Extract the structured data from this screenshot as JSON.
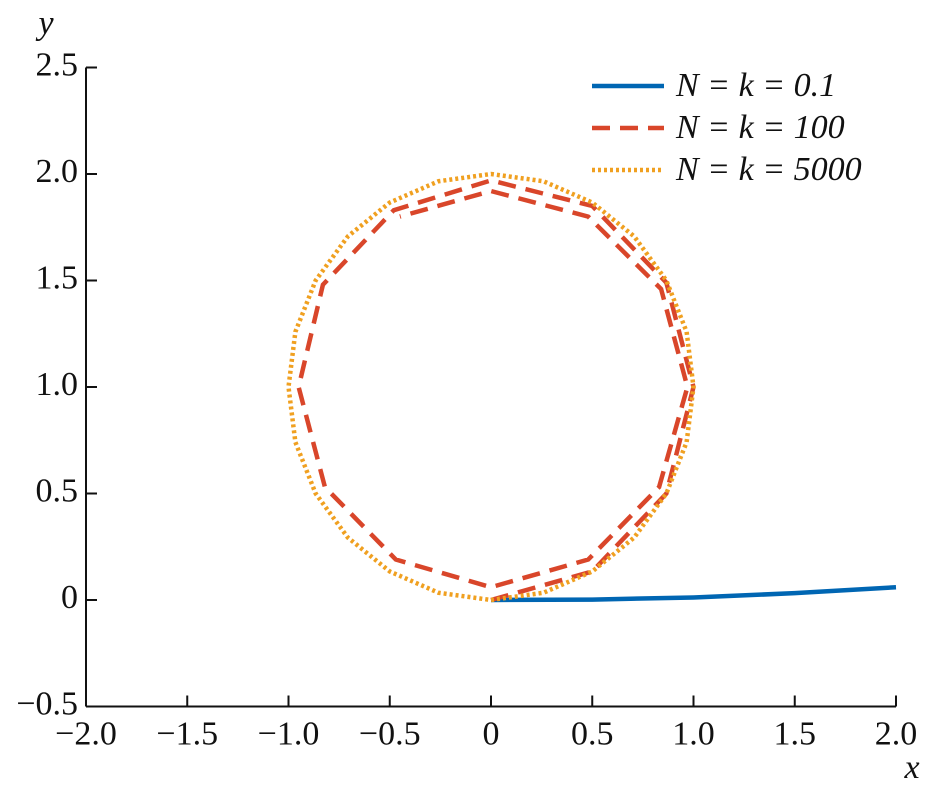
{
  "chart_data": {
    "type": "line",
    "x_label": "x",
    "y_label": "y",
    "xlim": [
      -2,
      2
    ],
    "ylim": [
      -0.5,
      2.5
    ],
    "xticks": [
      {
        "value": -2,
        "label": "−2.0"
      },
      {
        "value": -1.5,
        "label": "−1.5"
      },
      {
        "value": -1,
        "label": "−1.0"
      },
      {
        "value": -0.5,
        "label": "−0.5"
      },
      0,
      0.5,
      {
        "value": 1,
        "label": "1.0"
      },
      1.5,
      {
        "value": 2,
        "label": "2.0"
      }
    ],
    "yticks": [
      {
        "value": -0.5,
        "label": "−0.5"
      },
      0,
      0.5,
      {
        "value": 1,
        "label": "1.0"
      },
      1.5,
      {
        "value": 2,
        "label": "2.0"
      },
      2.5
    ],
    "legend": "upper right",
    "series": [
      {
        "name": "N = k = 0.1",
        "color": "#0066b3",
        "style": "solid",
        "x": [
          0,
          0.5,
          1,
          1.5,
          2
        ],
        "values": [
          0,
          0.002,
          0.012,
          0.032,
          0.06
        ]
      },
      {
        "name": "N = k = 100",
        "color": "#d9462a",
        "style": "dashed",
        "x": [
          0,
          0.5,
          0.866,
          1.0,
          0.866,
          0.5,
          0,
          -0.48,
          -0.83,
          -0.95,
          -0.82,
          -0.47,
          0,
          0.48,
          0.83,
          0.97,
          0.84,
          0.48,
          0,
          -0.45
        ],
        "values": [
          0,
          0.134,
          0.5,
          1.0,
          1.49,
          1.85,
          1.97,
          1.83,
          1.48,
          1.0,
          0.53,
          0.19,
          0.06,
          0.19,
          0.53,
          1.0,
          1.46,
          1.8,
          1.92,
          1.8
        ]
      },
      {
        "name": "N = k = 5000",
        "color": "#f0a020",
        "style": "dotted",
        "x": [
          0,
          0.259,
          0.5,
          0.707,
          0.866,
          0.966,
          1,
          0.966,
          0.866,
          0.707,
          0.5,
          0.259,
          0,
          -0.259,
          -0.5,
          -0.707,
          -0.866,
          -0.966,
          -1,
          -0.966,
          -0.866,
          -0.707,
          -0.5,
          -0.259,
          0
        ],
        "values": [
          0,
          0.034,
          0.134,
          0.293,
          0.5,
          0.741,
          1,
          1.259,
          1.5,
          1.707,
          1.866,
          1.966,
          2,
          1.966,
          1.866,
          1.707,
          1.5,
          1.259,
          1,
          0.741,
          0.5,
          0.293,
          0.134,
          0.034,
          0
        ]
      }
    ]
  }
}
